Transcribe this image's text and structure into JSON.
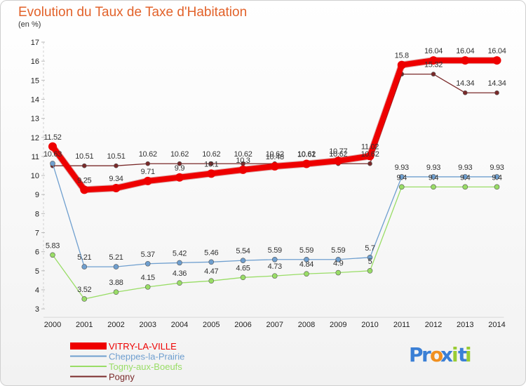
{
  "chart_data": {
    "type": "line",
    "title": "Evolution du Taux de Taxe d'Habitation",
    "subtitle": "(en %)",
    "x": [
      "2000",
      "2001",
      "2002",
      "2003",
      "2004",
      "2005",
      "2006",
      "2007",
      "2008",
      "2009",
      "2010",
      "2011",
      "2012",
      "2013",
      "2014"
    ],
    "ylim": [
      3,
      17
    ],
    "yticks": [
      3,
      4,
      5,
      6,
      7,
      8,
      9,
      10,
      11,
      12,
      13,
      14,
      15,
      16,
      17
    ],
    "grid": false,
    "legend_position": "bottom-left",
    "series": [
      {
        "name": "Pogny",
        "color": "#7a2a2a",
        "width": 1.3,
        "marker_radius": 3,
        "values": [
          10.51,
          10.51,
          10.51,
          10.62,
          10.62,
          10.62,
          10.62,
          10.62,
          10.62,
          10.62,
          10.62,
          15.32,
          15.32,
          14.34,
          14.34
        ],
        "labels": [
          "",
          "10.51",
          "10.51",
          "10.62",
          "10.62",
          "10.62",
          "10.62",
          "10.62",
          "10.62",
          "10.62",
          "10.62",
          "",
          "15.32",
          "14.34",
          "14.34"
        ]
      },
      {
        "name": "Cheppes-la-Prairie",
        "color": "#6f9fcf",
        "width": 1.3,
        "marker_radius": 3.5,
        "values": [
          10.63,
          5.21,
          5.21,
          5.37,
          5.42,
          5.46,
          5.54,
          5.59,
          5.59,
          5.59,
          5.7,
          9.93,
          9.93,
          9.93,
          9.93
        ],
        "labels": [
          "10.63",
          "5.21",
          "5.21",
          "5.37",
          "5.42",
          "5.46",
          "5.54",
          "5.59",
          "5.59",
          "5.59",
          "5.7",
          "9.93",
          "9.93",
          "9.93",
          "9.93"
        ]
      },
      {
        "name": "Togny-aux-Boeufs",
        "color": "#99dd66",
        "width": 1.3,
        "marker_radius": 3.5,
        "values": [
          5.83,
          3.52,
          3.88,
          4.15,
          4.36,
          4.47,
          4.65,
          4.73,
          4.84,
          4.9,
          5.0,
          9.4,
          9.4,
          9.4,
          9.4
        ],
        "labels": [
          "5.83",
          "3.52",
          "3.88",
          "4.15",
          "4.36",
          "4.47",
          "4.65",
          "4.73",
          "4.84",
          "4.9",
          "5",
          "9.4",
          "9.4",
          "9.4",
          "9.4"
        ]
      },
      {
        "name": "VITRY-LA-VILLE",
        "color": "#ee0000",
        "width": 8,
        "marker_radius": 6,
        "values": [
          11.52,
          9.25,
          9.34,
          9.71,
          9.9,
          10.1,
          10.3,
          10.48,
          10.61,
          10.77,
          11.02,
          15.8,
          16.04,
          16.04,
          16.04
        ],
        "labels": [
          "11.52",
          "9.25",
          "9.34",
          "9.71",
          "9.9",
          "10.1",
          "10.3",
          "10.48",
          "10.61",
          "10.77",
          "11.02",
          "15.8",
          "16.04",
          "16.04",
          "16.04"
        ]
      }
    ],
    "legend": [
      "VITRY-LA-VILLE",
      "Cheppes-la-Prairie",
      "Togny-aux-Boeufs",
      "Pogny"
    ]
  },
  "logo": {
    "text": "Proxiti",
    "letters": [
      "P",
      "r",
      "o",
      "x",
      "i",
      "t",
      "i"
    ],
    "colors": [
      "#3a7fd5",
      "#3a7fd5",
      "#f09020",
      "#3a7fd5",
      "#99cc33",
      "#3a7fd5",
      "#99cc33"
    ]
  }
}
